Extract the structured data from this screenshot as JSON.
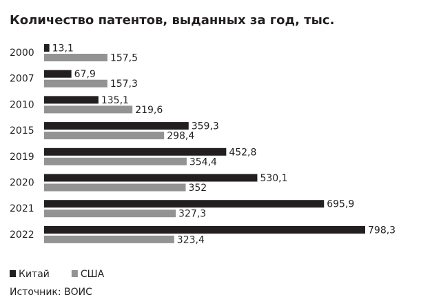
{
  "chart_data": {
    "type": "hbar",
    "title": "Количество патентов, выданных за год, тыс.",
    "categories": [
      "2000",
      "2007",
      "2010",
      "2015",
      "2019",
      "2020",
      "2021",
      "2022"
    ],
    "series": [
      {
        "name": "Китай",
        "color": "#231f20",
        "values": [
          13.1,
          67.9,
          135.1,
          359.3,
          452.8,
          530.1,
          695.9,
          798.3
        ],
        "value_labels": [
          "13,1",
          "67,9",
          "135,1",
          "359,3",
          "452,8",
          "530,1",
          "695,9",
          "798,3"
        ]
      },
      {
        "name": "США",
        "color": "#939393",
        "values": [
          157.5,
          157.3,
          219.6,
          298.4,
          354.4,
          352,
          327.3,
          323.4
        ],
        "value_labels": [
          "157,5",
          "157,3",
          "219,6",
          "298,4",
          "354,4",
          "352",
          "327,3",
          "323,4"
        ]
      }
    ],
    "source": "Источник: ВОИС"
  }
}
